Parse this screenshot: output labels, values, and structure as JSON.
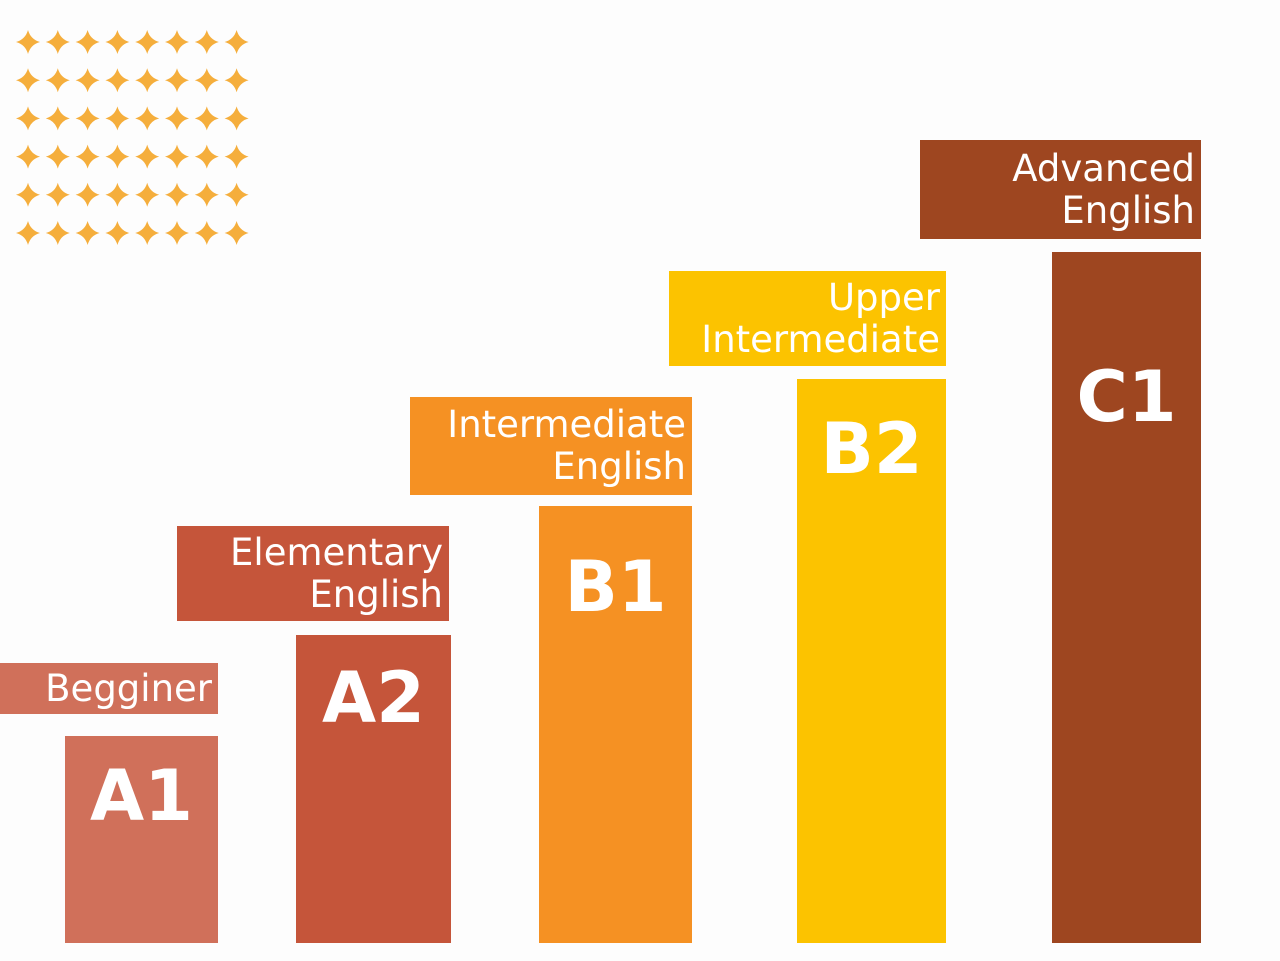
{
  "levels": [
    {
      "code": "A1",
      "label_lines": [
        "Begginer"
      ],
      "color": "#d0705a"
    },
    {
      "code": "A2",
      "label_lines": [
        "Elementary",
        "English"
      ],
      "color": "#c5553a"
    },
    {
      "code": "B1",
      "label_lines": [
        "Intermediate",
        "English"
      ],
      "color": "#f59123"
    },
    {
      "code": "B2",
      "label_lines": [
        "Upper",
        "Intermediate"
      ],
      "color": "#fcc300"
    },
    {
      "code": "C1",
      "label_lines": [
        "Advanced",
        "English"
      ],
      "color": "#9e4620"
    }
  ],
  "decoration": {
    "icon": "sparkle-star-grid-icon",
    "color": "#f5ae3c"
  }
}
